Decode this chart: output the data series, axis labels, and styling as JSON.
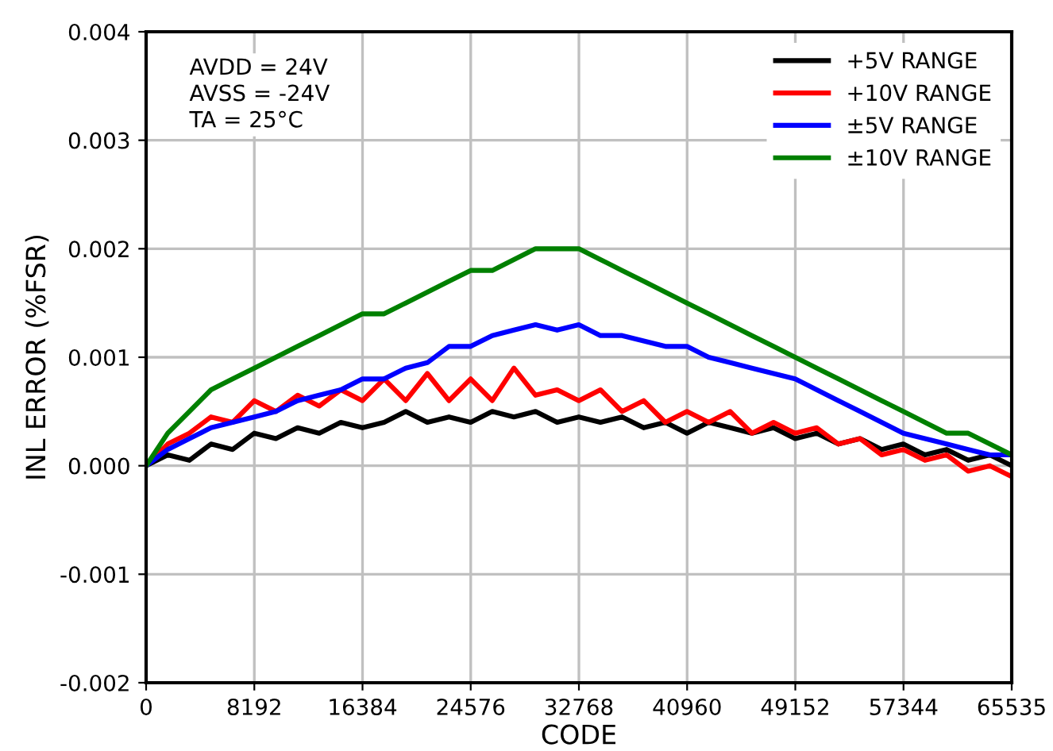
{
  "chart_data": {
    "type": "line",
    "xlabel": "CODE",
    "ylabel": "INL ERROR (%FSR)",
    "x": [
      0,
      1638,
      3276,
      4914,
      6552,
      8190,
      9828,
      11466,
      13104,
      14742,
      16380,
      18018,
      19656,
      21294,
      22932,
      24570,
      26208,
      27846,
      29484,
      31122,
      32760,
      34398,
      36036,
      37674,
      39312,
      40950,
      42588,
      44226,
      45864,
      47502,
      49140,
      50778,
      52416,
      54054,
      55692,
      57330,
      58968,
      60606,
      62244,
      63882,
      65535
    ],
    "series": [
      {
        "name": "+5V RANGE",
        "color": "#000000",
        "values": [
          0,
          0.0001,
          5e-05,
          0.0002,
          0.00015,
          0.0003,
          0.00025,
          0.00035,
          0.0003,
          0.0004,
          0.00035,
          0.0004,
          0.0005,
          0.0004,
          0.00045,
          0.0004,
          0.0005,
          0.00045,
          0.0005,
          0.0004,
          0.00045,
          0.0004,
          0.00045,
          0.00035,
          0.0004,
          0.0003,
          0.0004,
          0.00035,
          0.0003,
          0.00035,
          0.00025,
          0.0003,
          0.0002,
          0.00025,
          0.00015,
          0.0002,
          0.0001,
          0.00015,
          5e-05,
          0.0001,
          0
        ]
      },
      {
        "name": "+10V RANGE",
        "color": "#ff0000",
        "values": [
          0,
          0.0002,
          0.0003,
          0.00045,
          0.0004,
          0.0006,
          0.0005,
          0.00065,
          0.00055,
          0.0007,
          0.0006,
          0.0008,
          0.0006,
          0.00085,
          0.0006,
          0.0008,
          0.0006,
          0.0009,
          0.00065,
          0.0007,
          0.0006,
          0.0007,
          0.0005,
          0.0006,
          0.0004,
          0.0005,
          0.0004,
          0.0005,
          0.0003,
          0.0004,
          0.0003,
          0.00035,
          0.0002,
          0.00025,
          0.0001,
          0.00015,
          5e-05,
          0.0001,
          -5e-05,
          0,
          -0.0001
        ]
      },
      {
        "name": "±5V RANGE",
        "color": "#0000ff",
        "values": [
          0,
          0.00015,
          0.00025,
          0.00035,
          0.0004,
          0.00045,
          0.0005,
          0.0006,
          0.00065,
          0.0007,
          0.0008,
          0.0008,
          0.0009,
          0.00095,
          0.0011,
          0.0011,
          0.0012,
          0.00125,
          0.0013,
          0.00125,
          0.0013,
          0.0012,
          0.0012,
          0.00115,
          0.0011,
          0.0011,
          0.001,
          0.00095,
          0.0009,
          0.00085,
          0.0008,
          0.0007,
          0.0006,
          0.0005,
          0.0004,
          0.0003,
          0.00025,
          0.0002,
          0.00015,
          0.0001,
          0.0001
        ]
      },
      {
        "name": "±10V RANGE",
        "color": "#008000",
        "values": [
          0,
          0.0003,
          0.0005,
          0.0007,
          0.0008,
          0.0009,
          0.001,
          0.0011,
          0.0012,
          0.0013,
          0.0014,
          0.0014,
          0.0015,
          0.0016,
          0.0017,
          0.0018,
          0.0018,
          0.0019,
          0.002,
          0.002,
          0.002,
          0.0019,
          0.0018,
          0.0017,
          0.0016,
          0.0015,
          0.0014,
          0.0013,
          0.0012,
          0.0011,
          0.001,
          0.0009,
          0.0008,
          0.0007,
          0.0006,
          0.0005,
          0.0004,
          0.0003,
          0.0003,
          0.0002,
          0.0001
        ]
      }
    ],
    "xlim": [
      0,
      65535
    ],
    "ylim": [
      -0.002,
      0.004
    ],
    "xticks": [
      0,
      8192,
      16384,
      24576,
      32768,
      40960,
      49152,
      57344,
      65535
    ],
    "yticks": [
      {
        "value": -0.002,
        "label": "-0.002"
      },
      {
        "value": -0.001,
        "label": "-0.001"
      },
      {
        "value": 0,
        "label": "0.000"
      },
      {
        "value": 0.001,
        "label": "0.001"
      },
      {
        "value": 0.002,
        "label": "0.002"
      },
      {
        "value": 0.003,
        "label": "0.003"
      },
      {
        "value": 0.004,
        "label": "0.004"
      }
    ],
    "grid": true,
    "legend": "top right",
    "line_style": "solid",
    "annotations": [
      "AVDD = 24V\nAVSS = -24V\nTA = 25°C"
    ]
  }
}
